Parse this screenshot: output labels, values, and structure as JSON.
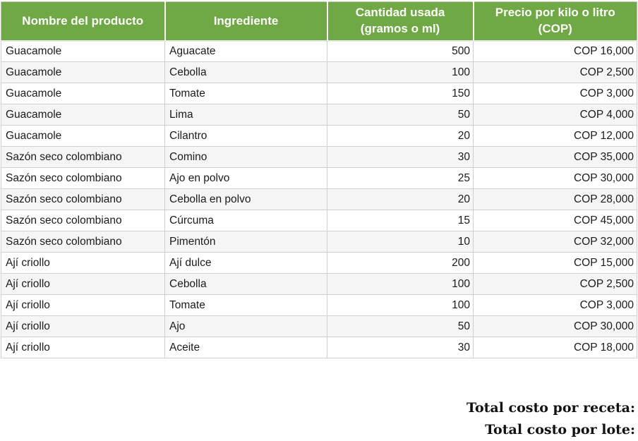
{
  "colors": {
    "header_bg": "#6FA845",
    "header_text": "#ffffff",
    "row_alt_bg": "#f5f5f5",
    "border": "#cfcfcf",
    "body_text": "#1b1b1b",
    "totals_text": "#111111"
  },
  "table": {
    "columns": [
      {
        "id": "producto",
        "label_lines": [
          "Nombre del producto"
        ],
        "align": "left"
      },
      {
        "id": "ingrediente",
        "label_lines": [
          "Ingrediente"
        ],
        "align": "left"
      },
      {
        "id": "cantidad",
        "label_lines": [
          "Cantidad usada",
          "(gramos o ml)"
        ],
        "align": "right"
      },
      {
        "id": "precio",
        "label_lines": [
          "Precio por kilo o litro",
          "(COP)"
        ],
        "align": "right"
      }
    ],
    "rows": [
      [
        "Guacamole",
        "Aguacate",
        "500",
        "COP 16,000"
      ],
      [
        "Guacamole",
        "Cebolla",
        "100",
        "COP 2,500"
      ],
      [
        "Guacamole",
        "Tomate",
        "150",
        "COP 3,000"
      ],
      [
        "Guacamole",
        "Lima",
        "50",
        "COP 4,000"
      ],
      [
        "Guacamole",
        "Cilantro",
        "20",
        "COP 12,000"
      ],
      [
        "Sazón seco colombiano",
        "Comino",
        "30",
        "COP 35,000"
      ],
      [
        "Sazón seco colombiano",
        "Ajo en polvo",
        "25",
        "COP 30,000"
      ],
      [
        "Sazón seco colombiano",
        "Cebolla en polvo",
        "20",
        "COP 28,000"
      ],
      [
        "Sazón seco colombiano",
        "Cúrcuma",
        "15",
        "COP 45,000"
      ],
      [
        "Sazón seco colombiano",
        "Pimentón",
        "10",
        "COP 32,000"
      ],
      [
        "Ají criollo",
        "Ají dulce",
        "200",
        "COP 15,000"
      ],
      [
        "Ají criollo",
        "Cebolla",
        "100",
        "COP 2,500"
      ],
      [
        "Ají criollo",
        "Tomate",
        "100",
        "COP 3,000"
      ],
      [
        "Ají criollo",
        "Ajo",
        "50",
        "COP 30,000"
      ],
      [
        "Ají criollo",
        "Aceite",
        "30",
        "COP 18,000"
      ]
    ]
  },
  "totals": {
    "receta_label": "Total costo por receta:",
    "lote_label": "Total costo por lote:"
  }
}
